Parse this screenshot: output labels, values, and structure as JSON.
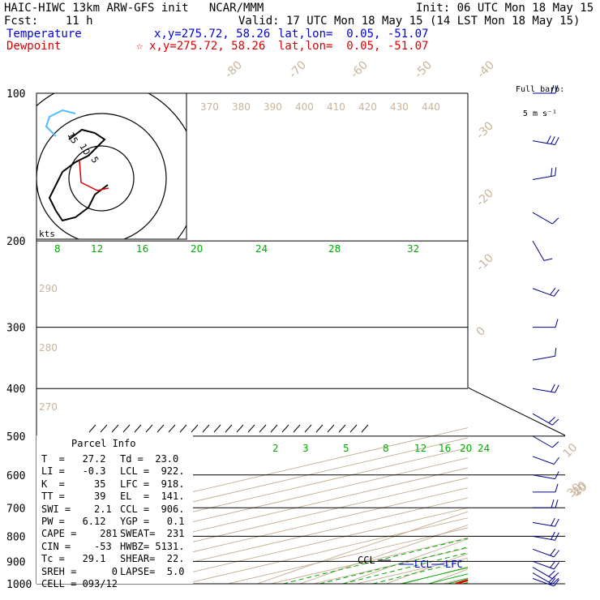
{
  "header": {
    "line1_left": "HAIC-HIWC 13km ARW-GFS init   NCAR/MMM",
    "line1_right": "Init: 06 UTC Mon 18 May 15",
    "line2_left": "Fcst:    11 h",
    "line2_right": "Valid: 17 UTC Mon 18 May 15 (14 LST Mon 18 May 15)",
    "temp_label": "Temperature",
    "temp_xy": "x,y=275.72, 58.26",
    "temp_latlon": "lat,lon=  0.05, -51.07",
    "dew_label": "Dewpoint",
    "dew_star": "☆",
    "dew_xy": "x,y=275.72, 58.26",
    "dew_latlon": "lat,lon=  0.05, -51.07"
  },
  "colors": {
    "temperature": "#0000dd",
    "dewpoint": "#dd0000",
    "isotherm": "#c8b49a",
    "mixing_ratio": "#00aa00",
    "hodo_upper": "#55bbff"
  },
  "barb_title": {
    "line1": "Full barb:",
    "line2": "5 m s⁻¹"
  },
  "chart_data": {
    "type": "line",
    "title": "",
    "ylabel": "",
    "pressure_ticks": [
      "100",
      "200",
      "300",
      "400",
      "500",
      "600",
      "700",
      "800",
      "900",
      "1000"
    ],
    "pressure_levels": [
      100,
      200,
      300,
      400,
      500,
      600,
      700,
      800,
      900,
      1000
    ],
    "isotherm_labels": [
      "-80",
      "-70",
      "-60",
      "-50",
      "-40",
      "-30",
      "-20",
      "-10",
      "0",
      "10",
      "20",
      "30",
      "40"
    ],
    "theta_labels": [
      "370",
      "380",
      "390",
      "400",
      "410",
      "420",
      "430",
      "440"
    ],
    "theta_side_labels": [
      "290",
      "280",
      "270"
    ],
    "mix_upper_labels": [
      "8",
      "12",
      "16",
      "20",
      "24",
      "28",
      "32"
    ],
    "mix_lower_labels": [
      "2",
      "3",
      "5",
      "8",
      "12",
      "16",
      "20",
      "24"
    ],
    "temperature": {
      "name": "Temperature",
      "p": [
        1000,
        975,
        950,
        925,
        900,
        850,
        800,
        750,
        700,
        650,
        600,
        550,
        500,
        450,
        400,
        350,
        300,
        275,
        250,
        225,
        200,
        175,
        150,
        125,
        100
      ],
      "t": [
        28,
        25.5,
        24,
        22.8,
        21.5,
        18.5,
        15.5,
        12.3,
        8.8,
        5.2,
        1.5,
        -2.5,
        -6.5,
        -11.5,
        -17.5,
        -24.8,
        -33,
        -37.5,
        -42.5,
        -48,
        -54,
        -61,
        -68,
        -76,
        -80
      ]
    },
    "dewpoint": {
      "name": "Dewpoint",
      "p": [
        1000,
        975,
        950,
        925,
        900,
        850,
        800,
        750,
        700,
        650,
        600,
        550,
        500,
        450,
        400,
        350,
        325,
        300,
        275,
        250,
        225,
        200,
        175,
        150,
        125,
        100
      ],
      "td": [
        23,
        22,
        21,
        20,
        18.8,
        16,
        13.5,
        11.5,
        8.5,
        4.5,
        0,
        -4,
        -8.5,
        -17,
        -31,
        -45,
        -48,
        -43,
        -44,
        -50,
        -62,
        -67,
        -70,
        -77,
        -86,
        -88
      ]
    },
    "labels": {
      "el": "EL",
      "ccl": "CCL",
      "lcl": "LCL",
      "lfc": "LFC",
      "kts": "kts"
    },
    "hodograph": {
      "ring_labels": [
        "15",
        "10",
        "5"
      ],
      "u": [
        2,
        -2,
        -4,
        -8,
        -12,
        -14,
        -16,
        -14,
        -12,
        -8,
        -4,
        -1,
        1,
        -2,
        -6,
        -10
      ],
      "v": [
        -2,
        -5,
        -9,
        -12,
        -13,
        -10,
        -6,
        -2,
        2,
        5,
        7,
        10,
        12,
        14,
        15,
        12
      ],
      "upper_u": [
        -14,
        -17,
        -16,
        -12,
        -8
      ],
      "upper_v": [
        13,
        16,
        19,
        21,
        20
      ]
    },
    "wind_barbs": {
      "p": [
        100,
        125,
        150,
        175,
        200,
        250,
        300,
        350,
        400,
        450,
        500,
        550,
        600,
        650,
        700,
        750,
        800,
        850,
        900,
        925,
        950,
        975
      ],
      "speed_ms": [
        10,
        15,
        10,
        5,
        5,
        10,
        5,
        5,
        10,
        10,
        5,
        5,
        5,
        5,
        10,
        10,
        10,
        10,
        10,
        10,
        10,
        10
      ],
      "dir_deg": [
        90,
        100,
        80,
        120,
        150,
        110,
        90,
        80,
        100,
        120,
        120,
        110,
        100,
        90,
        90,
        100,
        100,
        110,
        110,
        120,
        120,
        110
      ]
    }
  },
  "parcel": {
    "title": "Parcel Info",
    "rows": [
      [
        "T  =   27.2",
        "Td =  23.0"
      ],
      [
        "LI =   -0.3",
        "LCL =  922."
      ],
      [
        "K  =     35",
        "LFC =  918."
      ],
      [
        "TT =     39",
        "EL  =  141."
      ],
      [
        "SWI =    2.1",
        "CCL =  906."
      ],
      [
        "PW =   6.12",
        "YGP =   0.1"
      ],
      [
        "CAPE =    281",
        "SWEAT=  231"
      ],
      [
        "CIN =    -53",
        "HWBZ= 5131."
      ],
      [
        "Tc =   29.1",
        "SHEAR=  22."
      ],
      [
        "SREH =      0",
        "LAPSE=  5.0"
      ],
      [
        "CELL = 093/12",
        ""
      ]
    ]
  }
}
